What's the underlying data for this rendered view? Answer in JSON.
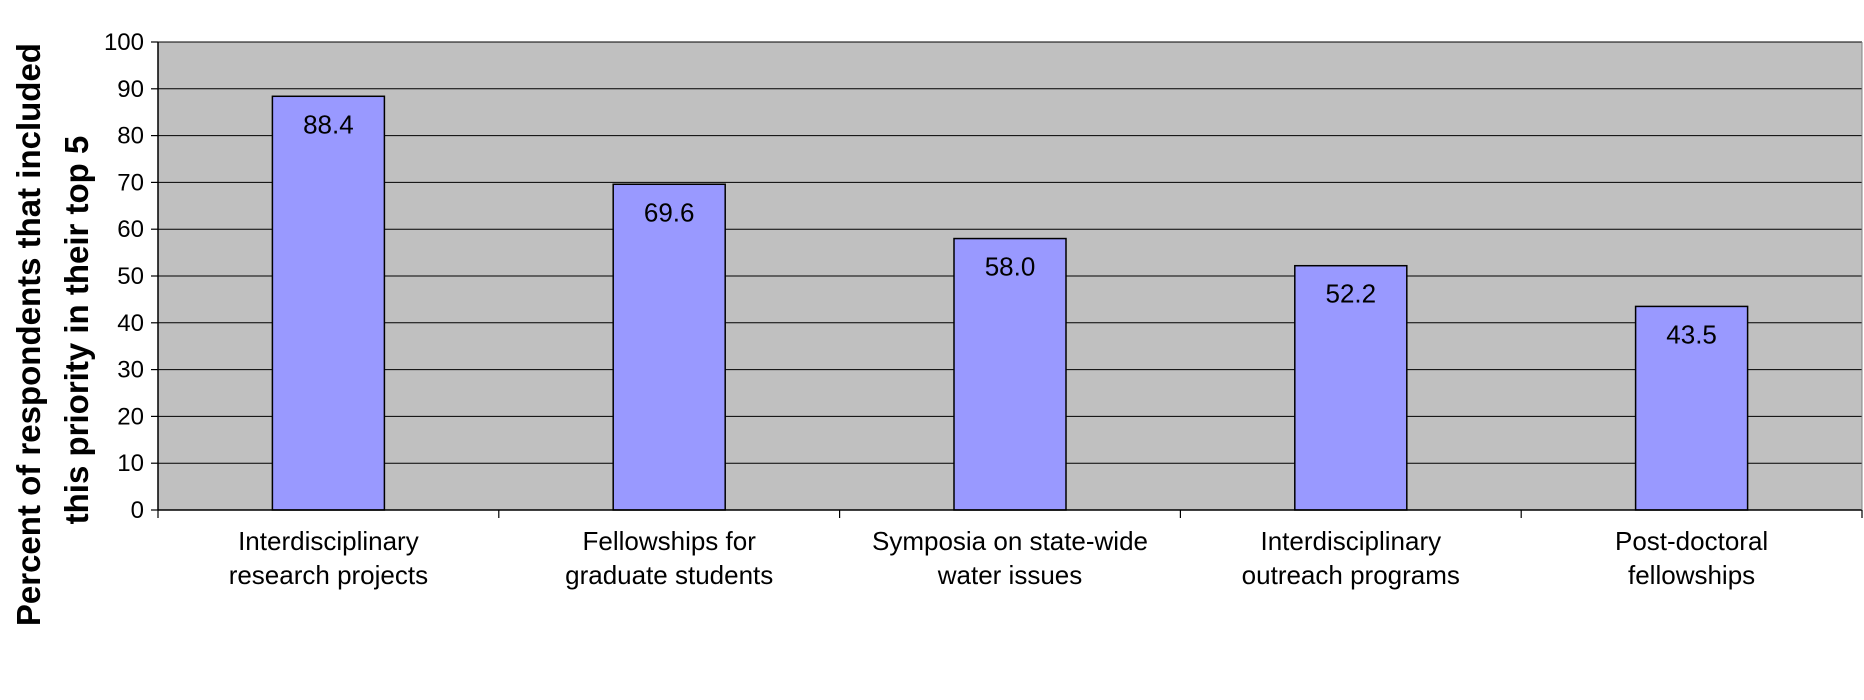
{
  "chart_data": {
    "type": "bar",
    "title": "",
    "xlabel": "",
    "ylabel": [
      "Percent of respondents that included",
      "this priority in their top 5"
    ],
    "ylim": [
      0,
      100
    ],
    "yticks": [
      0,
      10,
      20,
      30,
      40,
      50,
      60,
      70,
      80,
      90,
      100
    ],
    "grid": true,
    "legend": "none",
    "categories": [
      [
        "Interdisciplinary",
        "research projects"
      ],
      [
        "Fellowships for",
        "graduate students"
      ],
      [
        "Symposia on state-wide",
        "water issues"
      ],
      [
        "Interdisciplinary",
        "outreach programs"
      ],
      [
        "Post-doctoral",
        "fellowships"
      ]
    ],
    "values": [
      88.4,
      69.6,
      58.0,
      52.2,
      43.5
    ],
    "value_labels": [
      "88.4",
      "69.6",
      "58.0",
      "52.2",
      "43.5"
    ]
  },
  "colors": {
    "plot_background": "#c0c0c0",
    "bar_fill": "#9999ff",
    "bar_stroke": "#000000",
    "gridline": "#000000"
  }
}
